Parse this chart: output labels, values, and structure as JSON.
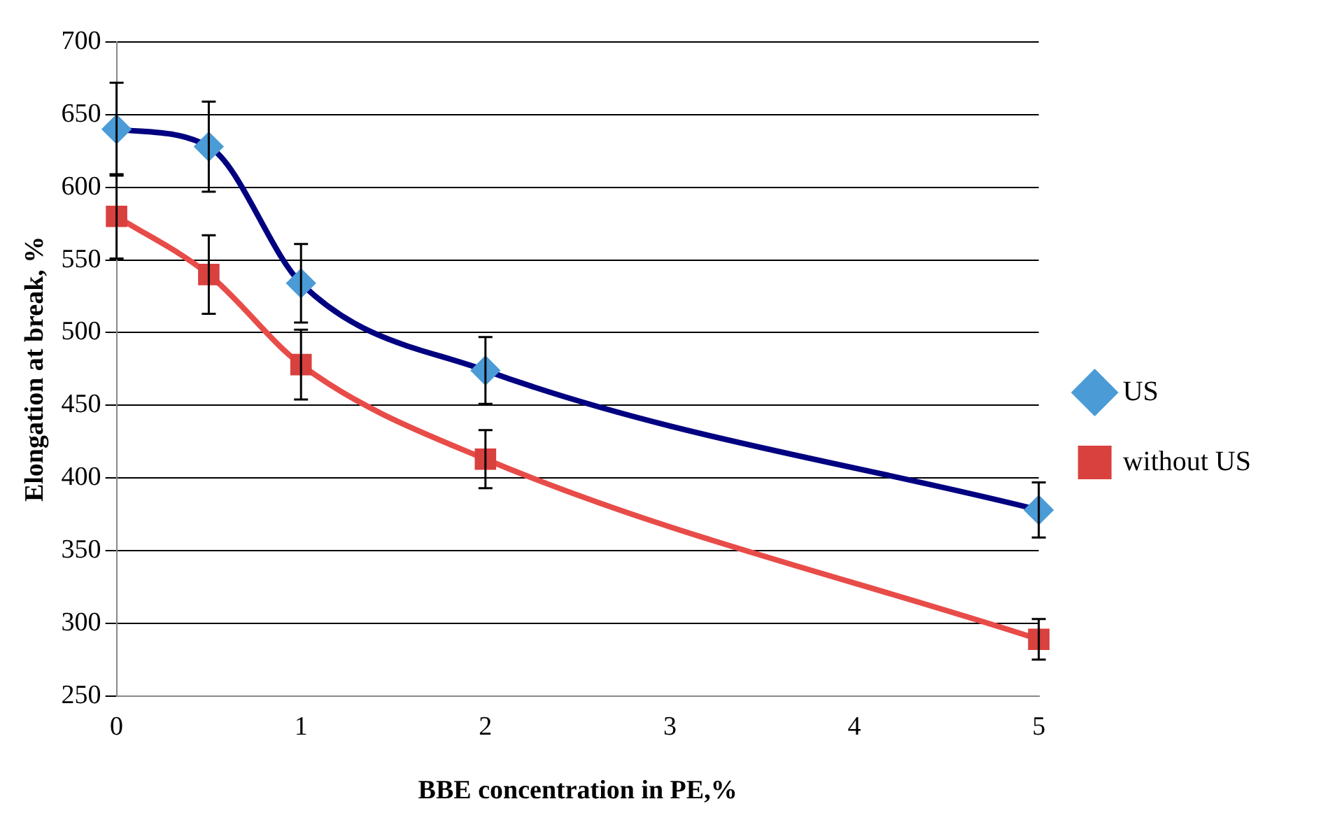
{
  "chart_data": {
    "type": "line",
    "xlabel": "BBE concentration in PE,%",
    "ylabel": "Elongation at break, %",
    "x": [
      0,
      0.5,
      1,
      2,
      5
    ],
    "xlim": [
      0,
      5
    ],
    "xticks": [
      0,
      1,
      2,
      3,
      4,
      5
    ],
    "ylim": [
      250,
      700
    ],
    "yticks": [
      250,
      300,
      350,
      400,
      450,
      500,
      550,
      600,
      650,
      700
    ],
    "grid": "y",
    "legend": "right",
    "series": [
      {
        "name": "US",
        "color": "#000080",
        "marker": "diamond",
        "colors": [
          "#4a9bd6",
          "#4a9bd6",
          "#4a9bd6",
          "#4a9bd6",
          "#4a9bd6"
        ],
        "values": [
          640,
          628,
          534,
          474,
          378
        ],
        "errors": [
          32,
          31,
          27,
          23,
          19
        ]
      },
      {
        "name": "without US",
        "color": "#e84c48",
        "marker": "square",
        "colors": [
          "#d9413e",
          "#d9413e",
          "#d9413e",
          "#d9413e",
          "#d9413e"
        ],
        "values": [
          580,
          540,
          478,
          413,
          289
        ],
        "errors": [
          29,
          27,
          24,
          20,
          14
        ]
      }
    ]
  }
}
